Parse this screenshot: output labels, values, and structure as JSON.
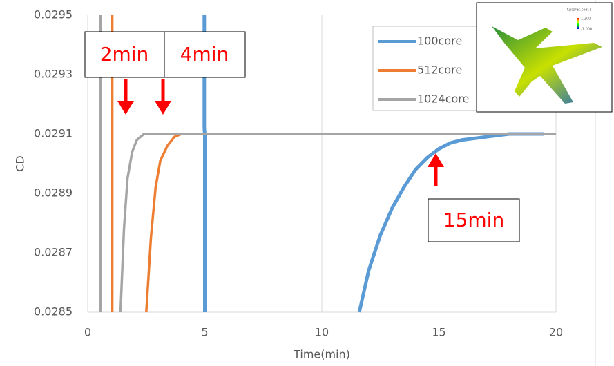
{
  "chart_data": {
    "type": "line",
    "x_label": "Time(min)",
    "y_label": "CD",
    "xlim": [
      0,
      20
    ],
    "xticks": [
      0,
      5,
      10,
      15,
      20
    ],
    "ylim": [
      0.0285,
      0.0295
    ],
    "yticks": [
      0.0285,
      0.0287,
      0.0289,
      0.0291,
      0.0293,
      0.0295
    ],
    "grid": "x",
    "legend": "upper right",
    "series": [
      {
        "name": "100core",
        "color": "#5b9bd5",
        "x": [
          4.98,
          4.98,
          5.0,
          5.0,
          null,
          11.6,
          12.0,
          12.5,
          13.0,
          13.5,
          14.0,
          14.5,
          15.0,
          15.5,
          16.0,
          17.0,
          18.0,
          19.5
        ],
        "values": [
          0.0295,
          0.02912,
          0.0291,
          0.0285,
          null,
          0.0285,
          0.02864,
          0.02876,
          0.02885,
          0.02892,
          0.02898,
          0.02902,
          0.02905,
          0.02907,
          0.02908,
          0.02909,
          0.0291,
          0.0291
        ]
      },
      {
        "name": "512core",
        "color": "#ed7d31",
        "x": [
          1.05,
          1.05,
          null,
          2.5,
          2.7,
          2.9,
          3.1,
          3.4,
          3.7,
          4.0,
          5.0
        ],
        "values": [
          0.0295,
          0.0285,
          null,
          0.0285,
          0.02875,
          0.02892,
          0.02901,
          0.02906,
          0.02909,
          0.0291,
          0.0291
        ]
      },
      {
        "name": "1024core",
        "color": "#a5a5a5",
        "x": [
          0.55,
          0.55,
          null,
          1.4,
          1.55,
          1.7,
          1.9,
          2.1,
          2.4,
          20.0
        ],
        "values": [
          0.0295,
          0.0285,
          null,
          0.0285,
          0.02878,
          0.02895,
          0.02904,
          0.02908,
          0.0291,
          0.0291
        ]
      }
    ],
    "annotations": [
      "2min",
      "4min",
      "15min"
    ],
    "inset_legend": {
      "title": "Cp(pres.coef.)",
      "max": "1.200",
      "min": "-1.000"
    }
  }
}
